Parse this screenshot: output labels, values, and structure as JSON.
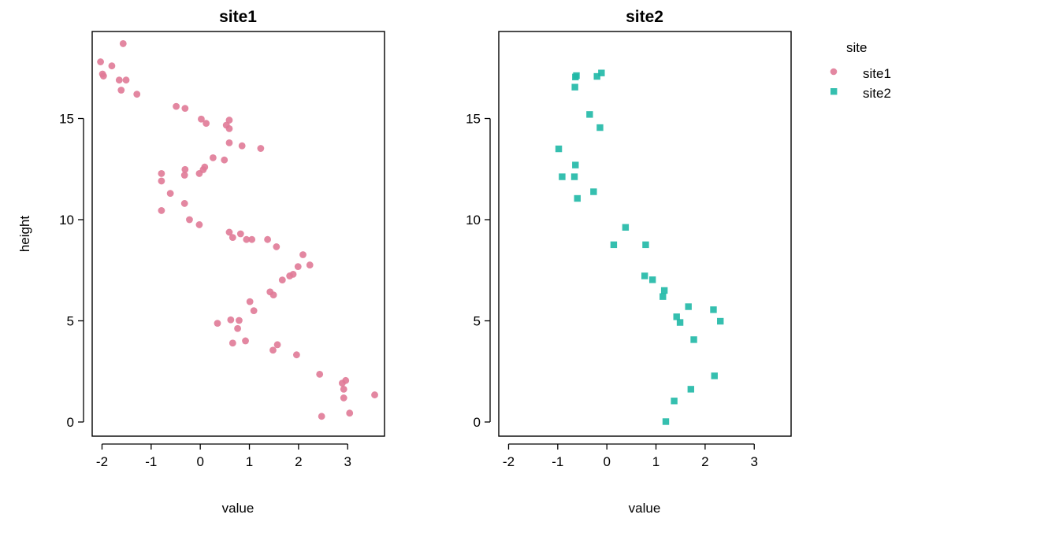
{
  "chart_data": {
    "type": "scatter",
    "xlabel": "value",
    "ylabel": "height",
    "xlim": [
      -2.2,
      3.75
    ],
    "ylim": [
      -0.7,
      19.3
    ],
    "x_ticks": [
      -2,
      -1,
      0,
      1,
      2,
      3
    ],
    "x_tick_labels": [
      "-2",
      "-1",
      "0",
      "1",
      "2",
      "3"
    ],
    "y_ticks": [
      0,
      5,
      10,
      15
    ],
    "y_tick_labels": [
      "0",
      "5",
      "10",
      "15"
    ],
    "grid": false,
    "legend": {
      "title": "site",
      "placement": "right"
    },
    "panels": [
      {
        "title": "site1",
        "series": "site1",
        "marker": "circle",
        "color": "#E07A97",
        "points": [
          [
            -1.57,
            18.7
          ],
          [
            -2.03,
            17.8
          ],
          [
            -1.8,
            17.6
          ],
          [
            -1.99,
            17.2
          ],
          [
            -1.97,
            17.1
          ],
          [
            -1.65,
            16.9
          ],
          [
            -1.51,
            16.9
          ],
          [
            -1.61,
            16.4
          ],
          [
            -1.29,
            16.2
          ],
          [
            -0.49,
            15.6
          ],
          [
            -0.31,
            15.5
          ],
          [
            0.02,
            14.97
          ],
          [
            0.59,
            14.92
          ],
          [
            0.12,
            14.76
          ],
          [
            0.53,
            14.67
          ],
          [
            0.59,
            14.5
          ],
          [
            0.59,
            13.8
          ],
          [
            0.85,
            13.65
          ],
          [
            1.23,
            13.52
          ],
          [
            0.26,
            13.06
          ],
          [
            0.49,
            12.95
          ],
          [
            0.09,
            12.6
          ],
          [
            -0.31,
            12.48
          ],
          [
            0.06,
            12.47
          ],
          [
            -0.79,
            12.28
          ],
          [
            -0.02,
            12.28
          ],
          [
            -0.32,
            12.2
          ],
          [
            -0.79,
            11.91
          ],
          [
            -0.61,
            11.3
          ],
          [
            -0.32,
            10.8
          ],
          [
            -0.79,
            10.45
          ],
          [
            -0.22,
            10.0
          ],
          [
            -0.02,
            9.75
          ],
          [
            0.59,
            9.38
          ],
          [
            0.82,
            9.3
          ],
          [
            0.66,
            9.12
          ],
          [
            0.94,
            9.02
          ],
          [
            1.05,
            9.02
          ],
          [
            1.37,
            9.02
          ],
          [
            1.55,
            8.66
          ],
          [
            2.09,
            8.27
          ],
          [
            2.23,
            7.76
          ],
          [
            1.99,
            7.68
          ],
          [
            1.89,
            7.3
          ],
          [
            1.82,
            7.22
          ],
          [
            1.67,
            7.02
          ],
          [
            1.42,
            6.43
          ],
          [
            1.49,
            6.28
          ],
          [
            1.01,
            5.95
          ],
          [
            1.09,
            5.5
          ],
          [
            0.62,
            5.05
          ],
          [
            0.79,
            5.02
          ],
          [
            0.35,
            4.88
          ],
          [
            0.76,
            4.62
          ],
          [
            0.92,
            4.01
          ],
          [
            1.57,
            3.82
          ],
          [
            0.66,
            3.9
          ],
          [
            1.48,
            3.55
          ],
          [
            1.96,
            3.32
          ],
          [
            2.43,
            2.36
          ],
          [
            2.89,
            1.92
          ],
          [
            2.96,
            2.05
          ],
          [
            2.92,
            1.62
          ],
          [
            3.55,
            1.34
          ],
          [
            2.92,
            1.19
          ],
          [
            3.04,
            0.44
          ],
          [
            2.47,
            0.28
          ]
        ]
      },
      {
        "title": "site2",
        "series": "site2",
        "marker": "square",
        "color": "#1FB8A6",
        "points": [
          [
            -0.64,
            17.05
          ],
          [
            -0.62,
            17.12
          ],
          [
            -0.2,
            17.08
          ],
          [
            -0.11,
            17.25
          ],
          [
            -0.65,
            16.55
          ],
          [
            -0.35,
            15.2
          ],
          [
            -0.14,
            14.55
          ],
          [
            -0.98,
            13.5
          ],
          [
            -0.64,
            12.7
          ],
          [
            -0.91,
            12.12
          ],
          [
            -0.66,
            12.12
          ],
          [
            -0.27,
            11.38
          ],
          [
            -0.6,
            11.05
          ],
          [
            0.38,
            9.62
          ],
          [
            0.14,
            8.76
          ],
          [
            0.79,
            8.76
          ],
          [
            0.77,
            7.22
          ],
          [
            0.93,
            7.03
          ],
          [
            1.17,
            6.5
          ],
          [
            1.14,
            6.2
          ],
          [
            1.66,
            5.7
          ],
          [
            2.17,
            5.55
          ],
          [
            1.42,
            5.2
          ],
          [
            1.49,
            4.92
          ],
          [
            2.31,
            4.98
          ],
          [
            1.77,
            4.07
          ],
          [
            2.19,
            2.28
          ],
          [
            1.71,
            1.62
          ],
          [
            1.37,
            1.04
          ],
          [
            1.2,
            0.02
          ]
        ]
      }
    ]
  }
}
